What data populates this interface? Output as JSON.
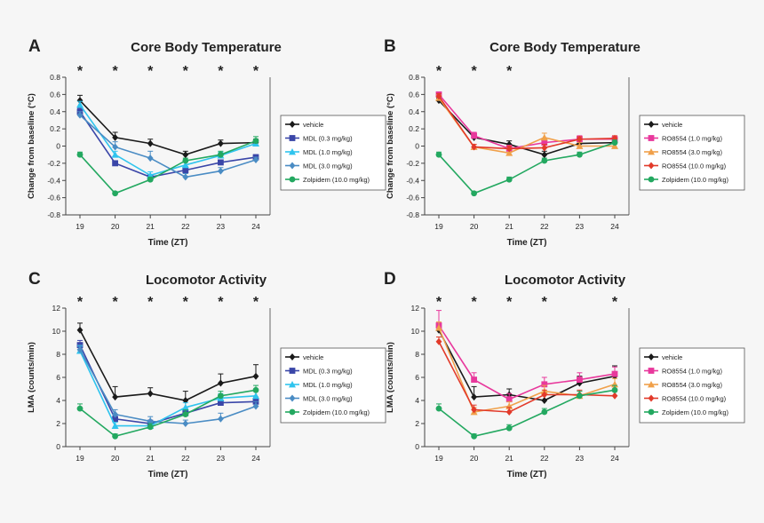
{
  "colors": {
    "vehicle": "#1a1a1a",
    "mdl03": "#3a46a8",
    "mdl10": "#2fc4ee",
    "mdl30": "#4a8cc4",
    "ro10": "#e8389c",
    "ro30": "#f0a04a",
    "ro100": "#e23a2a",
    "zolpidem": "#23a860",
    "axis": "#444444",
    "title": "#222222"
  },
  "chart_data": [
    {
      "panel_letter": "A",
      "type": "line",
      "title": "Core Body Temperature",
      "xlabel": "Time (ZT)",
      "ylabel": "Change from baseline (°C)",
      "x": [
        19,
        20,
        21,
        22,
        23,
        24
      ],
      "x_tick_labels": [
        "19",
        "20",
        "21",
        "22",
        "23",
        "24"
      ],
      "ylim": [
        -0.8,
        0.8
      ],
      "yticks": [
        -0.8,
        -0.6,
        -0.4,
        -0.2,
        0,
        0.2,
        0.4,
        0.6,
        0.8
      ],
      "ytick_labels": [
        "-0.8",
        "-0.6",
        "-0.4",
        "-0.2",
        "0",
        "0.2",
        "0.4",
        "0.6",
        "0.8"
      ],
      "significance": [
        "*",
        "*",
        "*",
        "*",
        "*",
        "*"
      ],
      "legend": "right",
      "series": [
        {
          "name": "vehicle",
          "color": "vehicle",
          "values": [
            0.53,
            0.1,
            0.03,
            -0.1,
            0.03,
            0.04
          ],
          "errors": [
            0.06,
            0.06,
            0.05,
            0.04,
            0.04,
            0.04
          ]
        },
        {
          "name": "MDL (0.3 mg/kg)",
          "color": "mdl03",
          "values": [
            0.4,
            -0.2,
            -0.36,
            -0.28,
            -0.19,
            -0.13
          ],
          "errors": [
            0.04,
            0.03,
            0.03,
            0.04,
            0.03,
            0.03
          ]
        },
        {
          "name": "MDL (1.0 mg/kg)",
          "color": "mdl10",
          "values": [
            0.48,
            -0.1,
            -0.34,
            -0.22,
            -0.11,
            0.03
          ],
          "errors": [
            0.04,
            0.04,
            0.04,
            0.05,
            0.04,
            0.04
          ]
        },
        {
          "name": "MDL (3.0 mg/kg)",
          "color": "mdl30",
          "values": [
            0.36,
            -0.01,
            -0.14,
            -0.36,
            -0.29,
            -0.16
          ],
          "errors": [
            0.04,
            0.06,
            0.08,
            0.04,
            0.04,
            0.03
          ]
        },
        {
          "name": "Zolpidem (10.0 mg/kg)",
          "color": "zolpidem",
          "values": [
            -0.1,
            -0.55,
            -0.39,
            -0.17,
            -0.1,
            0.06
          ],
          "errors": [
            0.03,
            0.02,
            0.03,
            0.03,
            0.04,
            0.05
          ]
        }
      ]
    },
    {
      "panel_letter": "B",
      "type": "line",
      "title": "Core Body Temperature",
      "xlabel": "Time (ZT)",
      "ylabel": "Change from baseline (°C)",
      "x": [
        19,
        20,
        21,
        22,
        23,
        24
      ],
      "x_tick_labels": [
        "19",
        "20",
        "21",
        "22",
        "23",
        "24"
      ],
      "ylim": [
        -0.8,
        0.8
      ],
      "yticks": [
        -0.8,
        -0.6,
        -0.4,
        -0.2,
        0,
        0.2,
        0.4,
        0.6,
        0.8
      ],
      "ytick_labels": [
        "-0.8",
        "-0.6",
        "-0.4",
        "-0.2",
        "0",
        "0.2",
        "0.4",
        "0.6",
        "0.8"
      ],
      "significance": [
        "*",
        "*",
        "*",
        "",
        "",
        ""
      ],
      "legend": "right",
      "series": [
        {
          "name": "vehicle",
          "color": "vehicle",
          "values": [
            0.53,
            0.1,
            0.02,
            -0.1,
            0.03,
            0.04
          ],
          "errors": [
            0.03,
            0.05,
            0.04,
            0.04,
            0.04,
            0.04
          ]
        },
        {
          "name": "RO8554 (1.0 mg/kg)",
          "color": "ro10",
          "values": [
            0.6,
            0.12,
            -0.03,
            0.04,
            0.08,
            0.08
          ],
          "errors": [
            0.03,
            0.04,
            0.04,
            0.04,
            0.04,
            0.03
          ]
        },
        {
          "name": "RO8554 (3.0 mg/kg)",
          "color": "ro30",
          "values": [
            0.56,
            -0.01,
            -0.08,
            0.1,
            0.0,
            0.0
          ],
          "errors": [
            0.03,
            0.03,
            0.04,
            0.05,
            0.04,
            0.03
          ]
        },
        {
          "name": "RO8554 (10.0 mg/kg)",
          "color": "ro100",
          "values": [
            0.58,
            -0.01,
            -0.03,
            -0.02,
            0.08,
            0.09
          ],
          "errors": [
            0.03,
            0.03,
            0.03,
            0.04,
            0.03,
            0.03
          ]
        },
        {
          "name": "Zolpidem (10.0 mg/kg)",
          "color": "zolpidem",
          "values": [
            -0.1,
            -0.55,
            -0.39,
            -0.17,
            -0.1,
            0.04
          ],
          "errors": [
            0.03,
            0.02,
            0.03,
            0.03,
            0.03,
            0.03
          ]
        }
      ]
    },
    {
      "panel_letter": "C",
      "type": "line",
      "title": "Locomotor Activity",
      "xlabel": "Time (ZT)",
      "ylabel": "LMA (counts/min)",
      "x": [
        19,
        20,
        21,
        22,
        23,
        24
      ],
      "x_tick_labels": [
        "19",
        "20",
        "21",
        "22",
        "23",
        "24"
      ],
      "ylim": [
        0,
        12
      ],
      "yticks": [
        0,
        2,
        4,
        6,
        8,
        10,
        12
      ],
      "ytick_labels": [
        "0",
        "2",
        "4",
        "6",
        "8",
        "10",
        "12"
      ],
      "significance": [
        "*",
        "*",
        "*",
        "*",
        "*",
        "*"
      ],
      "legend": "right",
      "series": [
        {
          "name": "vehicle",
          "color": "vehicle",
          "values": [
            10.1,
            4.3,
            4.6,
            4.0,
            5.5,
            6.1
          ],
          "errors": [
            0.6,
            0.9,
            0.5,
            0.8,
            0.8,
            1.0
          ]
        },
        {
          "name": "MDL (0.3 mg/kg)",
          "color": "mdl03",
          "values": [
            8.8,
            2.4,
            2.0,
            2.9,
            3.8,
            3.9
          ],
          "errors": [
            0.4,
            0.4,
            0.3,
            0.4,
            0.4,
            0.4
          ]
        },
        {
          "name": "MDL (1.0 mg/kg)",
          "color": "mdl10",
          "values": [
            8.3,
            1.8,
            1.8,
            3.4,
            4.2,
            4.4
          ],
          "errors": [
            0.4,
            0.3,
            0.3,
            0.4,
            0.4,
            0.4
          ]
        },
        {
          "name": "MDL (3.0 mg/kg)",
          "color": "mdl30",
          "values": [
            8.4,
            2.8,
            2.2,
            2.0,
            2.4,
            3.5
          ],
          "errors": [
            0.4,
            0.4,
            0.4,
            0.3,
            0.5,
            0.4
          ]
        },
        {
          "name": "Zolpidem (10.0 mg/kg)",
          "color": "zolpidem",
          "values": [
            3.3,
            0.9,
            1.7,
            2.8,
            4.4,
            4.9
          ],
          "errors": [
            0.4,
            0.2,
            0.3,
            0.4,
            0.4,
            0.4
          ]
        }
      ]
    },
    {
      "panel_letter": "D",
      "type": "line",
      "title": "Locomotor Activity",
      "xlabel": "Time (ZT)",
      "ylabel": "LMA (counts/min)",
      "x": [
        19,
        20,
        21,
        22,
        23,
        24
      ],
      "x_tick_labels": [
        "19",
        "20",
        "21",
        "22",
        "23",
        "24"
      ],
      "ylim": [
        0,
        12
      ],
      "yticks": [
        0,
        2,
        4,
        6,
        8,
        10,
        12
      ],
      "ytick_labels": [
        "0",
        "2",
        "4",
        "6",
        "8",
        "10",
        "12"
      ],
      "significance": [
        "*",
        "*",
        "*",
        "*",
        "",
        "*"
      ],
      "legend": "right",
      "series": [
        {
          "name": "vehicle",
          "color": "vehicle",
          "values": [
            10.1,
            4.3,
            4.5,
            4.0,
            5.5,
            6.1
          ],
          "errors": [
            0.6,
            0.9,
            0.5,
            0.7,
            0.6,
            0.9
          ]
        },
        {
          "name": "RO8554 (1.0 mg/kg)",
          "color": "ro10",
          "values": [
            10.5,
            5.8,
            4.1,
            5.4,
            5.8,
            6.3
          ],
          "errors": [
            1.3,
            0.6,
            0.5,
            0.6,
            0.6,
            0.6
          ]
        },
        {
          "name": "RO8554 (3.0 mg/kg)",
          "color": "ro30",
          "values": [
            10.3,
            3.0,
            3.5,
            4.8,
            4.4,
            5.4
          ],
          "errors": [
            0.5,
            0.4,
            0.4,
            0.5,
            0.4,
            0.5
          ]
        },
        {
          "name": "RO8554 (10.0 mg/kg)",
          "color": "ro100",
          "values": [
            9.1,
            3.2,
            3.0,
            4.5,
            4.5,
            4.4
          ],
          "errors": [
            0.4,
            0.4,
            0.4,
            0.4,
            0.4,
            0.4
          ]
        },
        {
          "name": "Zolpidem (10.0 mg/kg)",
          "color": "zolpidem",
          "values": [
            3.3,
            0.9,
            1.6,
            3.0,
            4.4,
            4.9
          ],
          "errors": [
            0.4,
            0.2,
            0.3,
            0.3,
            0.4,
            0.4
          ]
        }
      ]
    }
  ]
}
